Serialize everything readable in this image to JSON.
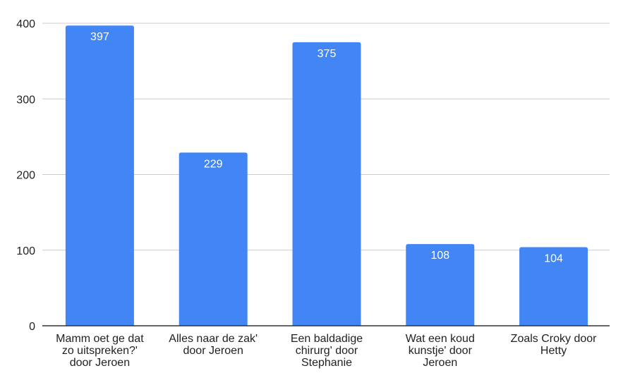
{
  "chart_data": {
    "type": "bar",
    "categories": [
      [
        "Mamm oet ge dat",
        "zo uitspreken?'",
        "door Jeroen"
      ],
      [
        "Alles naar de zak'",
        "door Jeroen"
      ],
      [
        "Een baldadige",
        "chirurg' door",
        "Stephanie"
      ],
      [
        "Wat een koud",
        "kunstje' door",
        "Jeroen"
      ],
      [
        "Zoals Croky door",
        "Hetty"
      ]
    ],
    "values": [
      397,
      229,
      375,
      108,
      104
    ],
    "data_labels": [
      "397",
      "229",
      "375",
      "108",
      "104"
    ],
    "yticks": [
      0,
      100,
      200,
      300,
      400
    ],
    "ytick_labels": [
      "0",
      "100",
      "200",
      "300",
      "400"
    ],
    "ylim": [
      0,
      400
    ],
    "grid": true,
    "bar_color": "#4285f4",
    "grid_color": "#cccccc",
    "axis_color": "#333333"
  }
}
